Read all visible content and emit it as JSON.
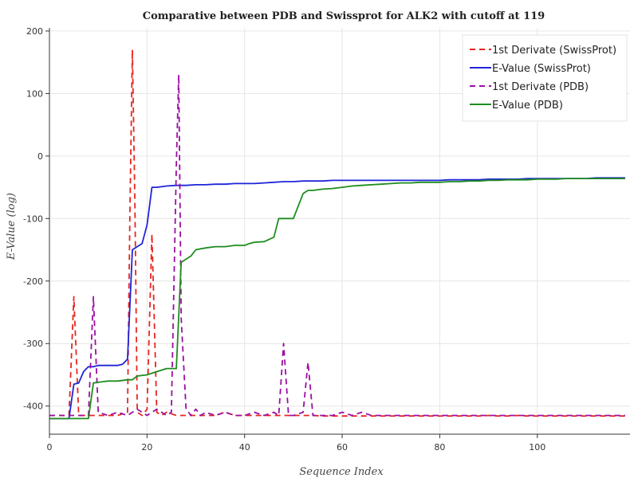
{
  "chart_data": {
    "type": "line",
    "title": "Comparative between PDB and Swissprot for ALK2 with cutoff at 119",
    "xlabel": "Sequence Index",
    "ylabel": "E-Value (log)",
    "xlim": [
      0,
      119
    ],
    "ylim": [
      -445,
      205
    ],
    "xticks": [
      0,
      20,
      40,
      60,
      80,
      100
    ],
    "yticks": [
      -400,
      -300,
      -200,
      -100,
      0,
      100,
      200
    ],
    "grid": true,
    "legend_position": "top-right",
    "series": [
      {
        "name": "1st Derivate (SwissProt)",
        "color": "#e8251f",
        "dash": true,
        "x": [
          0,
          2,
          4,
          5,
          6,
          7,
          8,
          10,
          12,
          14,
          16,
          16.5,
          17,
          17.5,
          18,
          19,
          20,
          21,
          22,
          23,
          24,
          26,
          28,
          30,
          32,
          34,
          36,
          38,
          40,
          42,
          44,
          46,
          48,
          50,
          52,
          54,
          56,
          58,
          60,
          62,
          64,
          66,
          68,
          70,
          72,
          74,
          76,
          78,
          80,
          82,
          84,
          86,
          88,
          90,
          92,
          94,
          96,
          98,
          100,
          102,
          104,
          106,
          108,
          110,
          112,
          114,
          116,
          118
        ],
        "y": [
          -415,
          -415,
          -415,
          -225,
          -415,
          -415,
          -415,
          -415,
          -415,
          -415,
          -410,
          -90,
          170,
          -70,
          -410,
          -415,
          -405,
          -125,
          -410,
          -415,
          -410,
          -415,
          -415,
          -415,
          -415,
          -415,
          -410,
          -415,
          -415,
          -415,
          -415,
          -415,
          -415,
          -415,
          -415,
          -415,
          -416,
          -416,
          -416,
          -416,
          -416,
          -416,
          -416,
          -416,
          -416,
          -416,
          -416,
          -416,
          -416,
          -416,
          -416,
          -416,
          -416,
          -415,
          -416,
          -416,
          -415,
          -416,
          -416,
          -416,
          -416,
          -416,
          -416,
          -416,
          -416,
          -416,
          -416,
          -416
        ]
      },
      {
        "name": "E-Value (SwissProt)",
        "color": "#1f24d8",
        "dash": false,
        "x": [
          0,
          2,
          4,
          5,
          6,
          7,
          8,
          9,
          10,
          12,
          14,
          15,
          16,
          17,
          18,
          19,
          20,
          21,
          22,
          24,
          26,
          28,
          30,
          32,
          34,
          36,
          38,
          40,
          42,
          44,
          46,
          48,
          50,
          52,
          54,
          56,
          58,
          60,
          62,
          64,
          66,
          68,
          70,
          72,
          74,
          76,
          78,
          80,
          82,
          84,
          86,
          88,
          90,
          92,
          94,
          96,
          98,
          100,
          102,
          104,
          106,
          108,
          110,
          112,
          114,
          116,
          118
        ],
        "y": [
          -420,
          -420,
          -420,
          -365,
          -363,
          -345,
          -337,
          -337,
          -335,
          -335,
          -335,
          -333,
          -325,
          -150,
          -145,
          -140,
          -110,
          -50,
          -50,
          -48,
          -47,
          -47,
          -46,
          -46,
          -45,
          -45,
          -44,
          -44,
          -44,
          -43,
          -42,
          -41,
          -41,
          -40,
          -40,
          -40,
          -39,
          -39,
          -39,
          -39,
          -39,
          -39,
          -39,
          -39,
          -39,
          -39,
          -39,
          -39,
          -38,
          -38,
          -38,
          -38,
          -37,
          -37,
          -37,
          -37,
          -36,
          -36,
          -36,
          -36,
          -36,
          -36,
          -36,
          -35,
          -35,
          -35,
          -35
        ]
      },
      {
        "name": "1st Derivate (PDB)",
        "color": "#9b0fa2",
        "dash": true,
        "x": [
          0,
          2,
          4,
          6,
          8,
          9,
          10,
          12,
          14,
          16,
          18,
          20,
          22,
          24,
          25,
          26,
          26.5,
          27,
          28,
          29,
          30,
          31,
          32,
          34,
          36,
          38,
          40,
          42,
          44,
          46,
          47,
          48,
          49,
          50,
          52,
          53,
          54,
          56,
          58,
          60,
          62,
          64,
          66,
          68,
          70,
          72,
          74,
          76,
          78,
          80,
          82,
          84,
          86,
          88,
          90,
          92,
          94,
          96,
          98,
          100,
          102,
          104,
          106,
          108,
          110,
          112,
          114,
          116,
          118
        ],
        "y": [
          -415,
          -415,
          -415,
          -415,
          -415,
          -225,
          -410,
          -415,
          -410,
          -415,
          -405,
          -415,
          -405,
          -415,
          -410,
          -15,
          130,
          -260,
          -405,
          -415,
          -405,
          -415,
          -410,
          -415,
          -410,
          -415,
          -415,
          -410,
          -415,
          -410,
          -415,
          -300,
          -415,
          -415,
          -410,
          -330,
          -415,
          -415,
          -415,
          -410,
          -415,
          -410,
          -415,
          -415,
          -415,
          -415,
          -415,
          -415,
          -415,
          -415,
          -415,
          -415,
          -415,
          -415,
          -415,
          -415,
          -415,
          -415,
          -415,
          -415,
          -415,
          -415,
          -415,
          -415,
          -415,
          -415,
          -415,
          -415,
          -415
        ]
      },
      {
        "name": "E-Value (PDB)",
        "color": "#1e8c1e",
        "dash": false,
        "x": [
          0,
          2,
          4,
          6,
          8,
          9,
          10,
          12,
          14,
          16,
          17,
          18,
          20,
          22,
          24,
          25,
          26,
          27,
          28,
          29,
          30,
          32,
          34,
          36,
          38,
          40,
          41,
          42,
          44,
          46,
          47,
          48,
          49,
          50,
          51,
          52,
          53,
          54,
          56,
          58,
          60,
          62,
          64,
          66,
          68,
          70,
          72,
          74,
          76,
          78,
          80,
          82,
          84,
          86,
          88,
          90,
          92,
          94,
          96,
          98,
          100,
          102,
          104,
          106,
          108,
          110,
          112,
          114,
          116,
          118
        ],
        "y": [
          -420,
          -420,
          -420,
          -420,
          -420,
          -363,
          -362,
          -360,
          -360,
          -358,
          -358,
          -352,
          -350,
          -345,
          -340,
          -340,
          -340,
          -170,
          -165,
          -160,
          -150,
          -147,
          -145,
          -145,
          -143,
          -143,
          -140,
          -138,
          -137,
          -130,
          -100,
          -100,
          -100,
          -100,
          -80,
          -60,
          -55,
          -55,
          -53,
          -52,
          -50,
          -48,
          -47,
          -46,
          -45,
          -44,
          -43,
          -43,
          -42,
          -42,
          -42,
          -41,
          -41,
          -40,
          -40,
          -39,
          -39,
          -38,
          -38,
          -38,
          -37,
          -37,
          -37,
          -36,
          -36,
          -36,
          -36,
          -36,
          -36,
          -36
        ]
      }
    ]
  }
}
